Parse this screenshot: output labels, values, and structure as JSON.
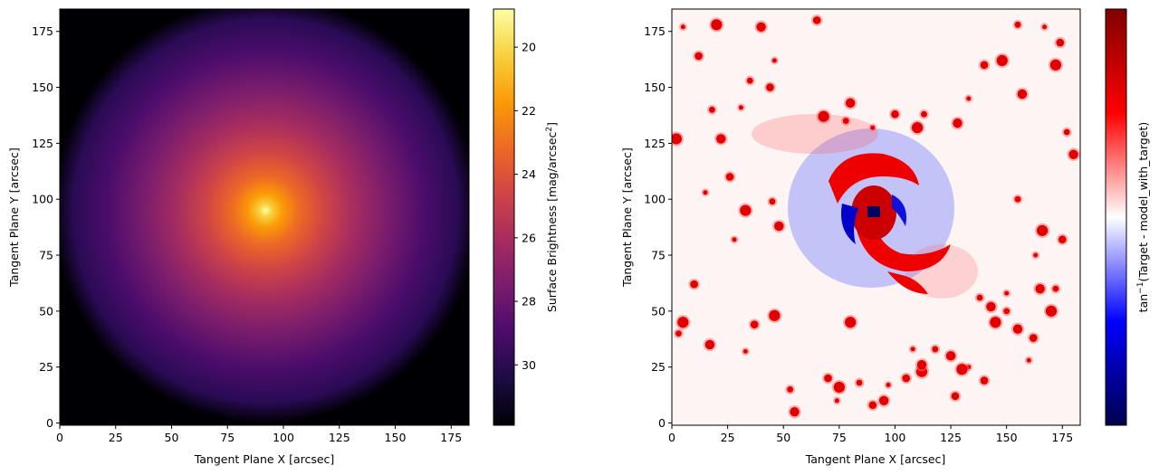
{
  "chart_data": [
    {
      "type": "heatmap",
      "title": "",
      "xlabel": "Tangent Plane X [arcsec]",
      "ylabel": "Tangent Plane Y [arcsec]",
      "xlim": [
        0,
        183
      ],
      "ylim": [
        -1,
        185
      ],
      "xticks": [
        0,
        25,
        50,
        75,
        100,
        125,
        150,
        175
      ],
      "yticks": [
        0,
        25,
        50,
        75,
        100,
        125,
        150,
        175
      ],
      "center": [
        92,
        95
      ],
      "colormap": "inferno",
      "colorbar": {
        "label": "Surface Brightness [mag/arcsec$^2$]",
        "label_main": "Surface Brightness [mag/arcsec",
        "label_sup": "2",
        "label_end": "]",
        "range": [
          31.9,
          18.8
        ],
        "ticks": [
          20,
          22,
          24,
          26,
          28,
          30
        ],
        "stops": [
          "#000004",
          "#1b0c41",
          "#4a0c6b",
          "#781c6d",
          "#a52c60",
          "#cf4446",
          "#ed6925",
          "#fb9b06",
          "#f7d13d",
          "#fcffa4"
        ]
      }
    },
    {
      "type": "heatmap",
      "title": "",
      "xlabel": "Tangent Plane X [arcsec]",
      "ylabel": "Tangent Plane Y [arcsec]",
      "xlim": [
        0,
        183
      ],
      "ylim": [
        -1,
        185
      ],
      "xticks": [
        0,
        25,
        50,
        75,
        100,
        125,
        150,
        175
      ],
      "yticks": [
        0,
        25,
        50,
        75,
        100,
        125,
        150,
        175
      ],
      "colormap": "seismic",
      "colorbar": {
        "label": "tan$^{-1}$(Target - model_with_target)",
        "label_main": "tan",
        "label_sup": "−1",
        "label_end": "(Target - model_with_target)",
        "ticks": [],
        "stops": [
          "#00004c",
          "#0000ff",
          "#ffffff",
          "#ff0000",
          "#800000"
        ]
      },
      "sources": [
        [
          5,
          177
        ],
        [
          12,
          164
        ],
        [
          20,
          178
        ],
        [
          35,
          153
        ],
        [
          40,
          177
        ],
        [
          46,
          162
        ],
        [
          44,
          150
        ],
        [
          2,
          127
        ],
        [
          18,
          140
        ],
        [
          22,
          127
        ],
        [
          31,
          141
        ],
        [
          65,
          180
        ],
        [
          68,
          137
        ],
        [
          78,
          135
        ],
        [
          80,
          143
        ],
        [
          90,
          132
        ],
        [
          100,
          138
        ],
        [
          110,
          132
        ],
        [
          113,
          138
        ],
        [
          128,
          134
        ],
        [
          133,
          145
        ],
        [
          140,
          160
        ],
        [
          148,
          162
        ],
        [
          155,
          178
        ],
        [
          157,
          147
        ],
        [
          167,
          177
        ],
        [
          174,
          170
        ],
        [
          172,
          160
        ],
        [
          177,
          130
        ],
        [
          180,
          120
        ],
        [
          15,
          103
        ],
        [
          26,
          110
        ],
        [
          33,
          95
        ],
        [
          45,
          99
        ],
        [
          48,
          88
        ],
        [
          28,
          82
        ],
        [
          10,
          62
        ],
        [
          5,
          45
        ],
        [
          3,
          40
        ],
        [
          17,
          35
        ],
        [
          33,
          32
        ],
        [
          37,
          44
        ],
        [
          46,
          48
        ],
        [
          53,
          15
        ],
        [
          55,
          5
        ],
        [
          74,
          10
        ],
        [
          70,
          20
        ],
        [
          75,
          16
        ],
        [
          84,
          18
        ],
        [
          95,
          10
        ],
        [
          97,
          17
        ],
        [
          105,
          20
        ],
        [
          112,
          23
        ],
        [
          118,
          33
        ],
        [
          125,
          30
        ],
        [
          133,
          25
        ],
        [
          140,
          19
        ],
        [
          145,
          45
        ],
        [
          150,
          50
        ],
        [
          155,
          42
        ],
        [
          160,
          28
        ],
        [
          162,
          38
        ],
        [
          170,
          50
        ],
        [
          172,
          60
        ],
        [
          165,
          60
        ],
        [
          163,
          75
        ],
        [
          175,
          82
        ],
        [
          166,
          86
        ],
        [
          155,
          100
        ],
        [
          112,
          26
        ],
        [
          108,
          33
        ],
        [
          127,
          12
        ],
        [
          130,
          24
        ],
        [
          138,
          56
        ],
        [
          143,
          52
        ],
        [
          150,
          58
        ],
        [
          90,
          8
        ],
        [
          80,
          45
        ]
      ]
    }
  ]
}
